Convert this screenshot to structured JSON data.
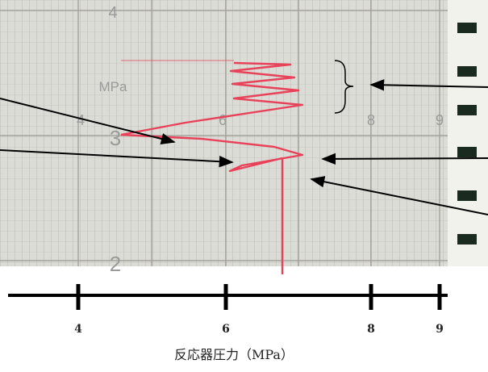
{
  "paper": {
    "row_labels": [
      "4",
      "3",
      "2"
    ],
    "unit": "MPa",
    "scale_labels": [
      "4",
      "6",
      "8",
      "9"
    ]
  },
  "axis": {
    "ticks": [
      "4",
      "6",
      "8",
      "9"
    ],
    "title": "反応器圧力（MPa）"
  }
}
